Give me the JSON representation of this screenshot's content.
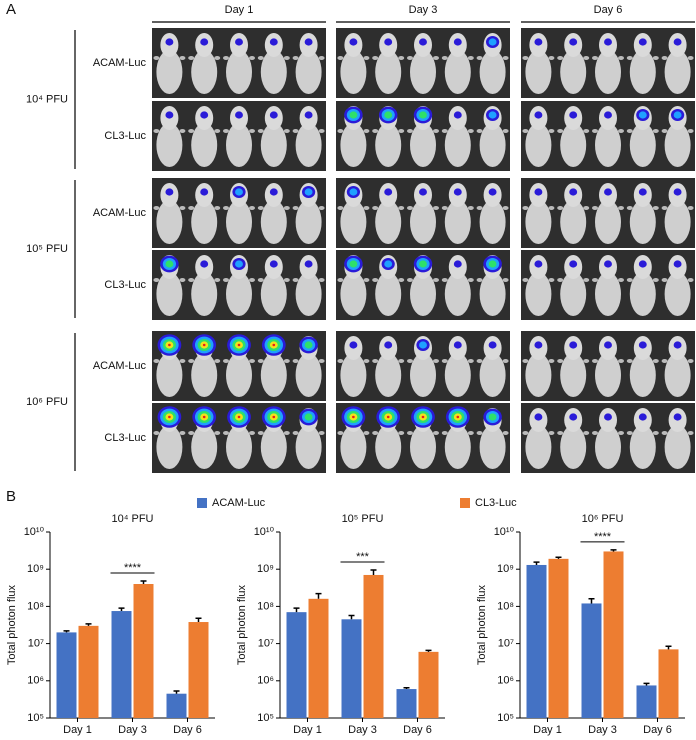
{
  "panel_a": {
    "label": "A",
    "columns": [
      "Day 1",
      "Day 3",
      "Day 6"
    ],
    "groups": [
      {
        "dose": "10⁴ PFU",
        "rows": [
          "ACAM-Luc",
          "CL3-Luc"
        ]
      },
      {
        "dose": "10⁵ PFU",
        "rows": [
          "ACAM-Luc",
          "CL3-Luc"
        ]
      },
      {
        "dose": "10⁶ PFU",
        "rows": [
          "ACAM-Luc",
          "CL3-Luc"
        ]
      }
    ]
  },
  "panel_b_label": "B",
  "chart_data": [
    {
      "type": "bar",
      "title": "10⁴ PFU",
      "ylabel": "Total photon flux",
      "log_scale": true,
      "categories": [
        "Day 1",
        "Day 3",
        "Day 6"
      ],
      "series": [
        {
          "name": "ACAM-Luc",
          "color": "#4472c4",
          "values": [
            20000000,
            75000000,
            450000
          ],
          "errors": [
            2000000,
            15000000,
            80000
          ]
        },
        {
          "name": "CL3-Luc",
          "color": "#ed7d31",
          "values": [
            30000000,
            400000000,
            38000000
          ],
          "errors": [
            4000000,
            80000000,
            10000000
          ]
        }
      ],
      "significance": [
        null,
        "****",
        null
      ],
      "ylim": [
        100000,
        10000000000
      ],
      "yticks": [
        {
          "value": 100000,
          "label": "10⁵"
        },
        {
          "value": 1000000,
          "label": "10⁶"
        },
        {
          "value": 10000000,
          "label": "10⁷"
        },
        {
          "value": 100000000,
          "label": "10⁸"
        },
        {
          "value": 1000000000,
          "label": "10⁹"
        },
        {
          "value": 10000000000,
          "label": "10¹⁰"
        }
      ]
    },
    {
      "type": "bar",
      "title": "10⁵ PFU",
      "ylabel": "Total photon flux",
      "log_scale": true,
      "categories": [
        "Day 1",
        "Day 3",
        "Day 6"
      ],
      "series": [
        {
          "name": "ACAM-Luc",
          "color": "#4472c4",
          "values": [
            70000000,
            45000000,
            600000
          ],
          "errors": [
            20000000,
            12000000,
            50000
          ]
        },
        {
          "name": "CL3-Luc",
          "color": "#ed7d31",
          "values": [
            160000000,
            700000000,
            6000000
          ],
          "errors": [
            60000000,
            250000000,
            600000
          ]
        }
      ],
      "significance": [
        null,
        "***",
        null
      ],
      "ylim": [
        100000,
        10000000000
      ],
      "yticks": [
        {
          "value": 100000,
          "label": "10⁵"
        },
        {
          "value": 1000000,
          "label": "10⁶"
        },
        {
          "value": 10000000,
          "label": "10⁷"
        },
        {
          "value": 100000000,
          "label": "10⁸"
        },
        {
          "value": 1000000000,
          "label": "10⁹"
        },
        {
          "value": 10000000000,
          "label": "10¹⁰"
        }
      ]
    },
    {
      "type": "bar",
      "title": "10⁶ PFU",
      "ylabel": "Total photon flux",
      "log_scale": true,
      "categories": [
        "Day 1",
        "Day 3",
        "Day 6"
      ],
      "series": [
        {
          "name": "ACAM-Luc",
          "color": "#4472c4",
          "values": [
            1300000000,
            120000000,
            750000
          ],
          "errors": [
            250000000,
            40000000,
            100000
          ]
        },
        {
          "name": "CL3-Luc",
          "color": "#ed7d31",
          "values": [
            1900000000,
            3000000000,
            7000000
          ],
          "errors": [
            200000000,
            300000000,
            1500000
          ]
        }
      ],
      "significance": [
        null,
        "****",
        null
      ],
      "ylim": [
        100000,
        10000000000
      ],
      "yticks": [
        {
          "value": 100000,
          "label": "10⁵"
        },
        {
          "value": 1000000,
          "label": "10⁶"
        },
        {
          "value": 10000000,
          "label": "10⁷"
        },
        {
          "value": 100000000,
          "label": "10⁸"
        },
        {
          "value": 1000000000,
          "label": "10⁹"
        },
        {
          "value": 10000000000,
          "label": "10¹⁰"
        }
      ]
    }
  ]
}
